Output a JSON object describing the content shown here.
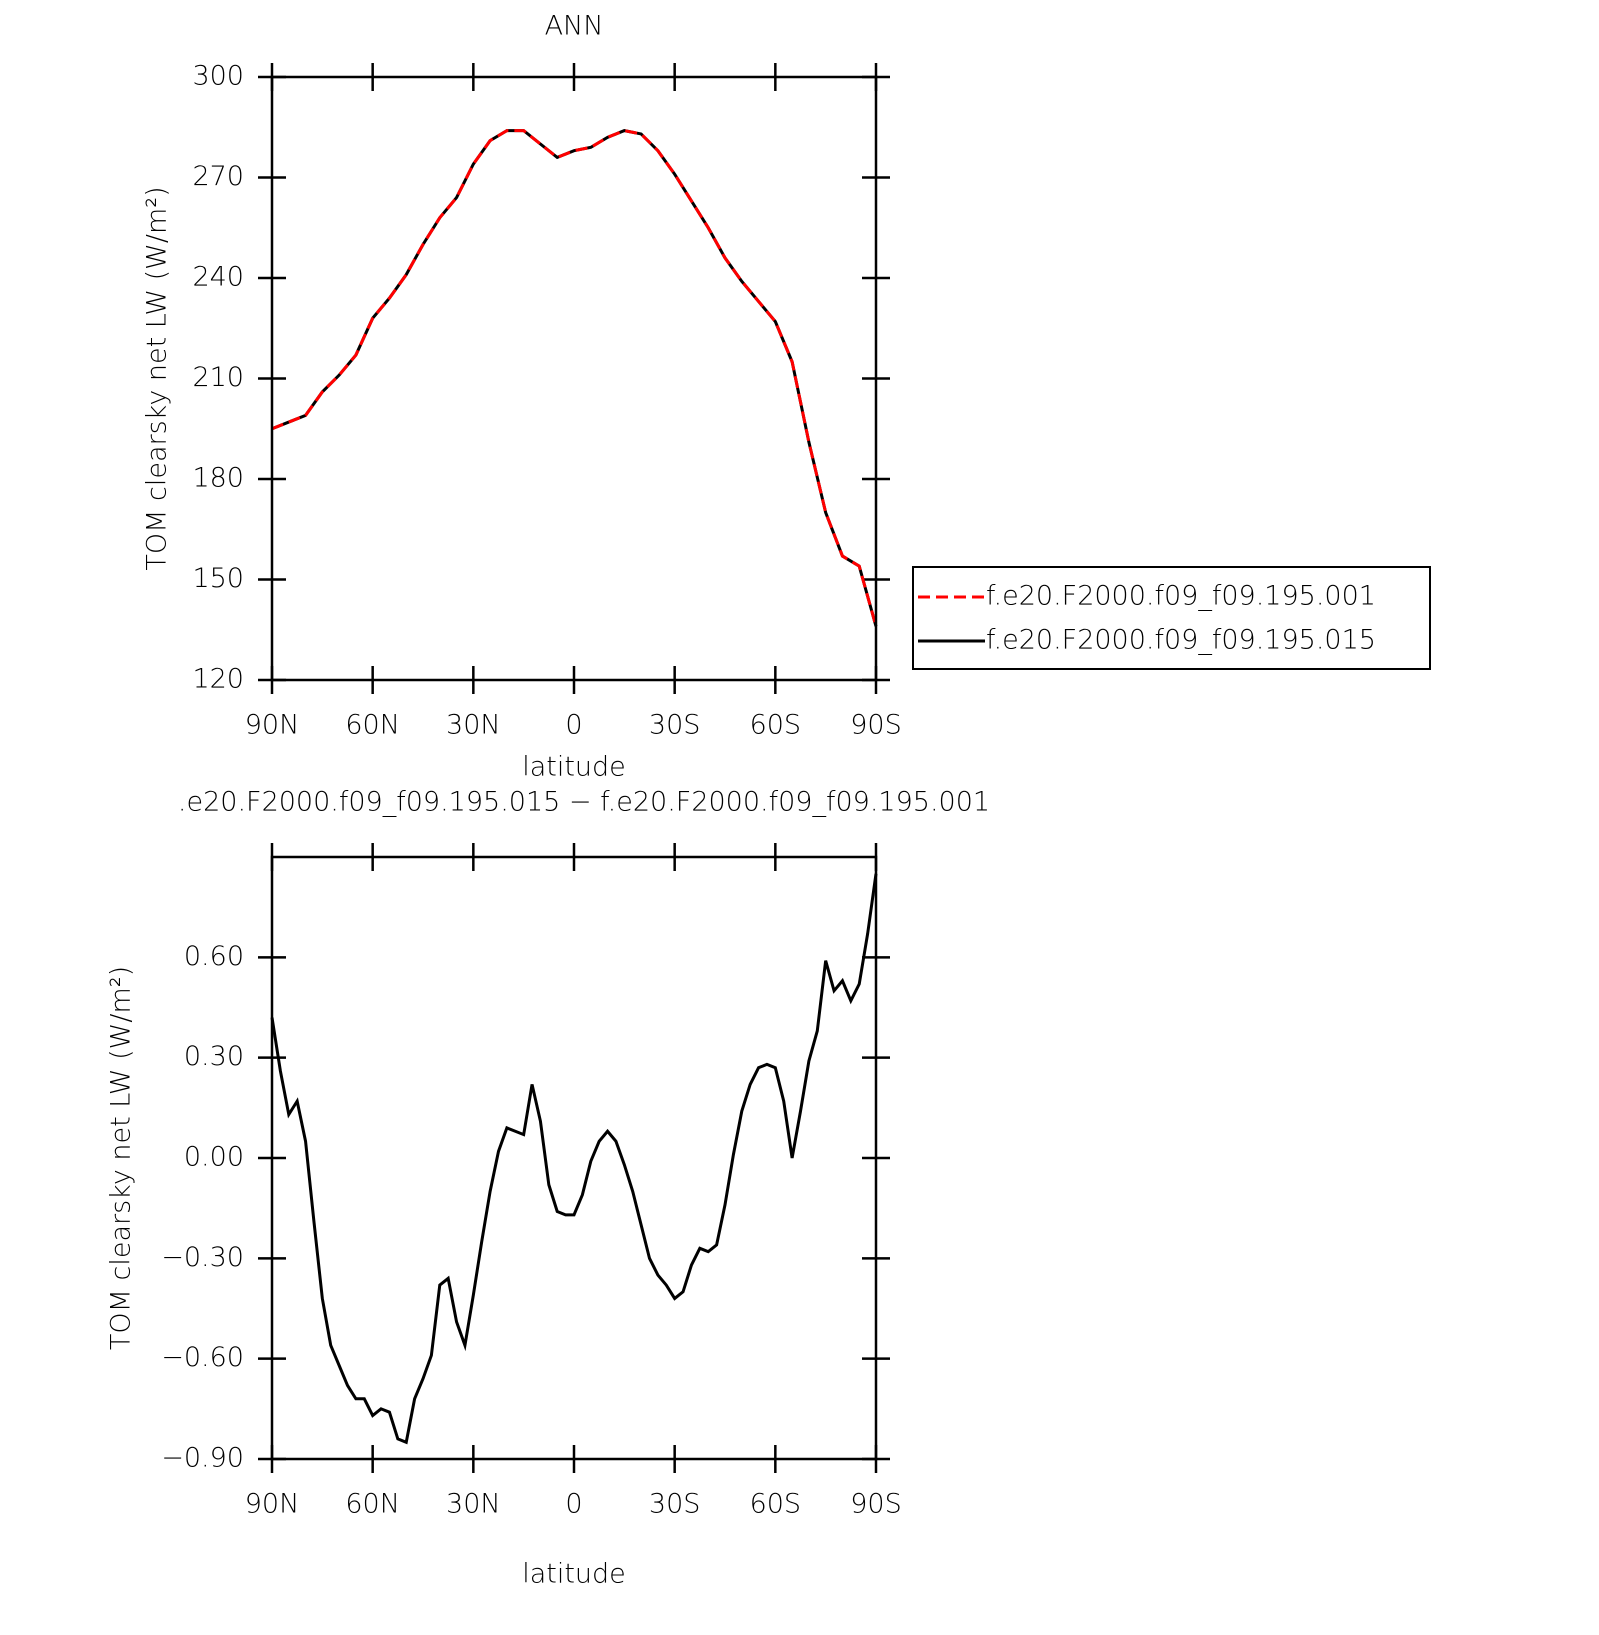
{
  "chart_data": [
    {
      "type": "line",
      "title": "ANN",
      "xlabel": "latitude",
      "ylabel": "TOM clearsky net LW (W/m²)",
      "x": [
        90,
        85,
        80,
        75,
        70,
        65,
        60,
        55,
        50,
        45,
        40,
        35,
        30,
        25,
        20,
        15,
        10,
        5,
        0,
        -5,
        -10,
        -15,
        -20,
        -25,
        -30,
        -35,
        -40,
        -45,
        -50,
        -55,
        -60,
        -65,
        -70,
        -75,
        -80,
        -85,
        -90
      ],
      "series": [
        {
          "name": "f.e20.F2000.f09_f09.195.001",
          "color": "#ff0000",
          "linestyle": "dashed",
          "values": [
            195,
            197,
            199,
            206,
            211,
            217,
            228,
            234,
            241,
            250,
            258,
            264,
            274,
            281,
            284,
            284,
            280,
            276,
            278,
            279,
            282,
            284,
            283,
            278,
            271,
            263,
            255,
            246,
            239,
            233,
            227,
            215,
            191,
            170,
            157,
            154,
            136
          ]
        },
        {
          "name": "f.e20.F2000.f09_f09.195.015",
          "color": "#000000",
          "linestyle": "solid",
          "values": [
            195,
            197,
            199,
            206,
            211,
            217,
            228,
            234,
            241,
            250,
            258,
            264,
            274,
            281,
            284,
            284,
            280,
            276,
            278,
            279,
            282,
            284,
            283,
            278,
            271,
            263,
            255,
            246,
            239,
            233,
            227,
            215,
            191,
            170,
            157,
            154,
            136
          ]
        }
      ],
      "xlim": [
        90,
        -90
      ],
      "xticks": [
        {
          "value": 90,
          "label": "90N"
        },
        {
          "value": 60,
          "label": "60N"
        },
        {
          "value": 30,
          "label": "30N"
        },
        0,
        {
          "value": -30,
          "label": "30S"
        },
        {
          "value": -60,
          "label": "60S"
        },
        {
          "value": -90,
          "label": "90S"
        }
      ],
      "ylim": [
        120,
        300
      ],
      "yticks": [
        120,
        150,
        180,
        210,
        240,
        270,
        300
      ],
      "legend": "right"
    },
    {
      "type": "line",
      "title": ".e20.F2000.f09_f09.195.015 − f.e20.F2000.f09_f09.195.001",
      "xlabel": "latitude",
      "ylabel": "TOM clearsky net LW (W/m²)",
      "x": [
        90,
        87.5,
        85,
        82.5,
        80,
        77.5,
        75,
        72.5,
        70,
        67.5,
        65,
        62.5,
        60,
        57.5,
        55,
        52.5,
        50,
        47.5,
        45,
        42.5,
        40,
        37.5,
        35,
        32.5,
        30,
        27.5,
        25,
        22.5,
        20,
        17.5,
        15,
        12.5,
        10,
        7.5,
        5,
        2.5,
        0,
        -2.5,
        -5,
        -7.5,
        -10,
        -12.5,
        -15,
        -17.5,
        -20,
        -22.5,
        -25,
        -27.5,
        -30,
        -32.5,
        -35,
        -37.5,
        -40,
        -42.5,
        -45,
        -47.5,
        -50,
        -52.5,
        -55,
        -57.5,
        -60,
        -62.5,
        -65,
        -67.5,
        -70,
        -72.5,
        -75,
        -77.5,
        -80,
        -82.5,
        -85,
        -87.5,
        -90
      ],
      "series": [
        {
          "color": "#000000",
          "linestyle": "solid",
          "values": [
            0.42,
            0.26,
            0.13,
            0.17,
            0.05,
            -0.19,
            -0.42,
            -0.56,
            -0.62,
            -0.68,
            -0.72,
            -0.72,
            -0.77,
            -0.75,
            -0.76,
            -0.84,
            -0.85,
            -0.72,
            -0.66,
            -0.59,
            -0.38,
            -0.36,
            -0.49,
            -0.56,
            -0.41,
            -0.25,
            -0.1,
            0.02,
            0.09,
            0.08,
            0.07,
            0.22,
            0.11,
            -0.08,
            -0.16,
            -0.17,
            -0.17,
            -0.11,
            -0.01,
            0.05,
            0.08,
            0.05,
            -0.02,
            -0.1,
            -0.2,
            -0.3,
            -0.35,
            -0.38,
            -0.42,
            -0.4,
            -0.32,
            -0.27,
            -0.28,
            -0.26,
            -0.14,
            0.01,
            0.14,
            0.22,
            0.27,
            0.28,
            0.27,
            0.17,
            0.0,
            0.14,
            0.29,
            0.38,
            0.59,
            0.5,
            0.53,
            0.47,
            0.52,
            0.67,
            0.85
          ]
        }
      ],
      "xlim": [
        90,
        -90
      ],
      "xticks": [
        {
          "value": 90,
          "label": "90N"
        },
        {
          "value": 60,
          "label": "60N"
        },
        {
          "value": 30,
          "label": "30N"
        },
        0,
        {
          "value": -30,
          "label": "30S"
        },
        {
          "value": -60,
          "label": "60S"
        },
        {
          "value": -90,
          "label": "90S"
        }
      ],
      "ylim": [
        -0.9,
        0.9
      ],
      "yticks": [
        {
          "value": -0.9,
          "label": "−0.90"
        },
        {
          "value": -0.6,
          "label": "−0.60"
        },
        {
          "value": -0.3,
          "label": "−0.30"
        },
        {
          "value": 0,
          "label": "0.00"
        },
        {
          "value": 0.3,
          "label": "0.30"
        },
        {
          "value": 0.6,
          "label": "0.60"
        }
      ]
    }
  ]
}
